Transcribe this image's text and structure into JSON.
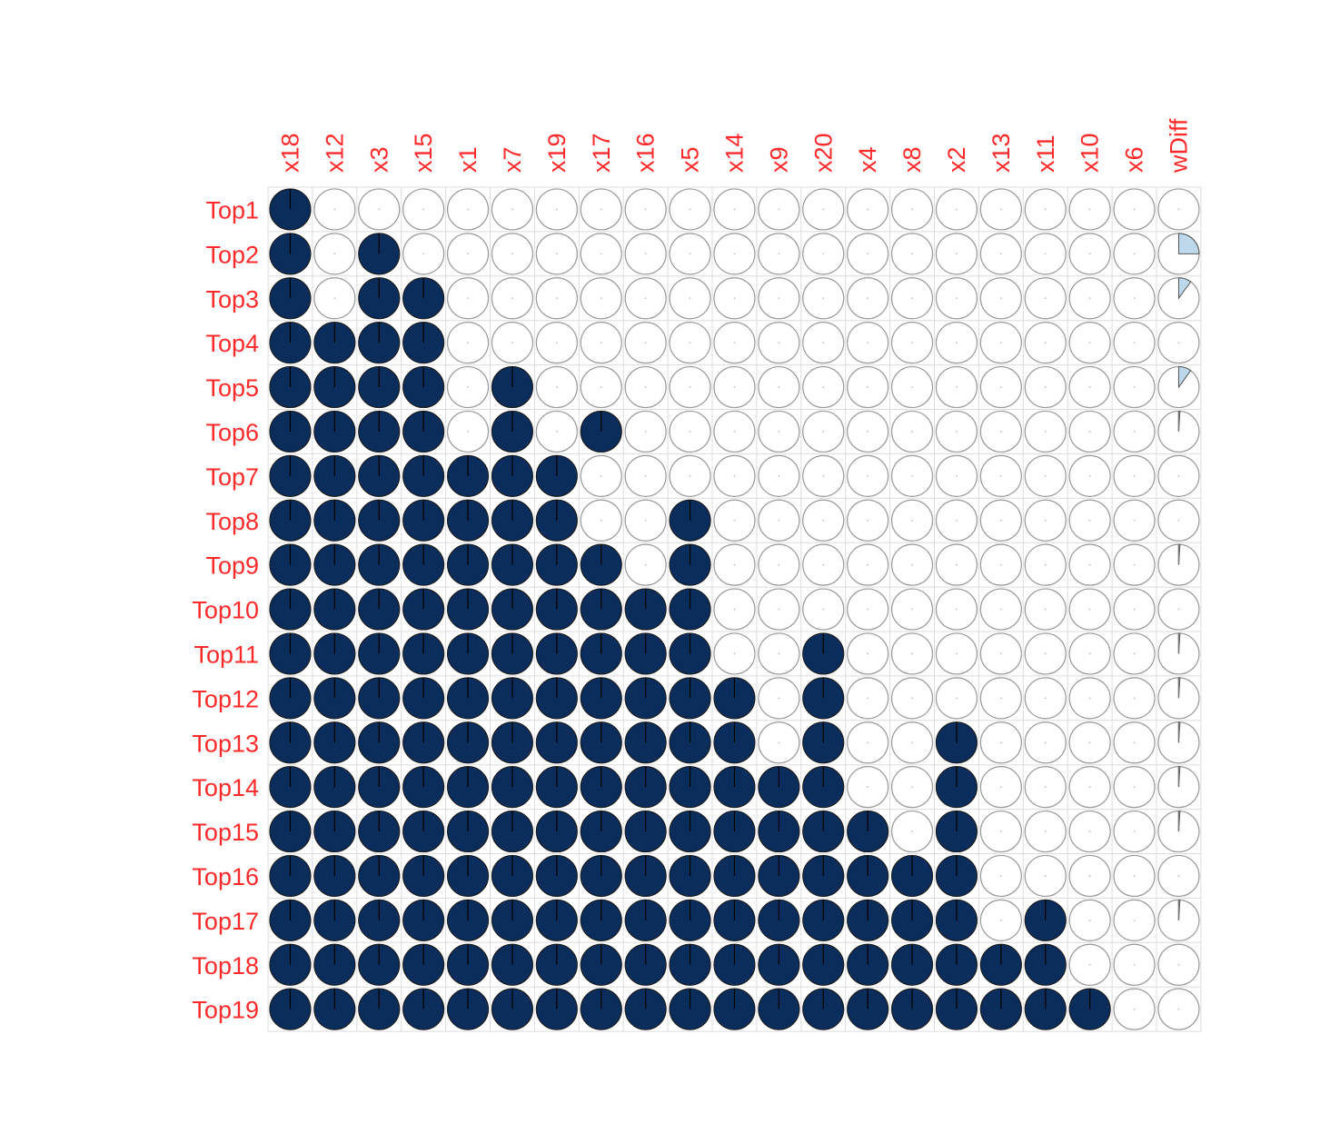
{
  "chart_data": {
    "type": "heatmap",
    "glyph": "pie",
    "columns": [
      "x18",
      "x12",
      "x3",
      "x15",
      "x1",
      "x7",
      "x19",
      "x17",
      "x16",
      "x5",
      "x14",
      "x9",
      "x20",
      "x4",
      "x8",
      "x2",
      "x13",
      "x11",
      "x10",
      "x6",
      "wDiff"
    ],
    "rows": [
      "Top1",
      "Top2",
      "Top3",
      "Top4",
      "Top5",
      "Top6",
      "Top7",
      "Top8",
      "Top9",
      "Top10",
      "Top11",
      "Top12",
      "Top13",
      "Top14",
      "Top15",
      "Top16",
      "Top17",
      "Top18",
      "Top19"
    ],
    "values": [
      [
        1,
        0,
        0,
        0,
        0,
        0,
        0,
        0,
        0,
        0,
        0,
        0,
        0,
        0,
        0,
        0,
        0,
        0,
        0,
        0,
        0
      ],
      [
        1,
        0,
        1,
        0,
        0,
        0,
        0,
        0,
        0,
        0,
        0,
        0,
        0,
        0,
        0,
        0,
        0,
        0,
        0,
        0,
        0.25
      ],
      [
        1,
        0,
        1,
        1,
        0,
        0,
        0,
        0,
        0,
        0,
        0,
        0,
        0,
        0,
        0,
        0,
        0,
        0,
        0,
        0,
        0.1
      ],
      [
        1,
        1,
        1,
        1,
        0,
        0,
        0,
        0,
        0,
        0,
        0,
        0,
        0,
        0,
        0,
        0,
        0,
        0,
        0,
        0,
        0
      ],
      [
        1,
        1,
        1,
        1,
        0,
        1,
        0,
        0,
        0,
        0,
        0,
        0,
        0,
        0,
        0,
        0,
        0,
        0,
        0,
        0,
        0.1
      ],
      [
        1,
        1,
        1,
        1,
        0,
        1,
        0,
        1,
        0,
        0,
        0,
        0,
        0,
        0,
        0,
        0,
        0,
        0,
        0,
        0,
        0.01
      ],
      [
        1,
        1,
        1,
        1,
        1,
        1,
        1,
        0,
        0,
        0,
        0,
        0,
        0,
        0,
        0,
        0,
        0,
        0,
        0,
        0,
        0
      ],
      [
        1,
        1,
        1,
        1,
        1,
        1,
        1,
        0,
        0,
        1,
        0,
        0,
        0,
        0,
        0,
        0,
        0,
        0,
        0,
        0,
        0
      ],
      [
        1,
        1,
        1,
        1,
        1,
        1,
        1,
        1,
        0,
        1,
        0,
        0,
        0,
        0,
        0,
        0,
        0,
        0,
        0,
        0,
        0.01
      ],
      [
        1,
        1,
        1,
        1,
        1,
        1,
        1,
        1,
        1,
        1,
        0,
        0,
        0,
        0,
        0,
        0,
        0,
        0,
        0,
        0,
        0
      ],
      [
        1,
        1,
        1,
        1,
        1,
        1,
        1,
        1,
        1,
        1,
        0,
        0,
        1,
        0,
        0,
        0,
        0,
        0,
        0,
        0,
        0.01
      ],
      [
        1,
        1,
        1,
        1,
        1,
        1,
        1,
        1,
        1,
        1,
        1,
        0,
        1,
        0,
        0,
        0,
        0,
        0,
        0,
        0,
        0.01
      ],
      [
        1,
        1,
        1,
        1,
        1,
        1,
        1,
        1,
        1,
        1,
        1,
        0,
        1,
        0,
        0,
        1,
        0,
        0,
        0,
        0,
        0.01
      ],
      [
        1,
        1,
        1,
        1,
        1,
        1,
        1,
        1,
        1,
        1,
        1,
        1,
        1,
        0,
        0,
        1,
        0,
        0,
        0,
        0,
        0.01
      ],
      [
        1,
        1,
        1,
        1,
        1,
        1,
        1,
        1,
        1,
        1,
        1,
        1,
        1,
        1,
        0,
        1,
        0,
        0,
        0,
        0,
        0.01
      ],
      [
        1,
        1,
        1,
        1,
        1,
        1,
        1,
        1,
        1,
        1,
        1,
        1,
        1,
        1,
        1,
        1,
        0,
        0,
        0,
        0,
        0
      ],
      [
        1,
        1,
        1,
        1,
        1,
        1,
        1,
        1,
        1,
        1,
        1,
        1,
        1,
        1,
        1,
        1,
        0,
        1,
        0,
        0,
        0.01
      ],
      [
        1,
        1,
        1,
        1,
        1,
        1,
        1,
        1,
        1,
        1,
        1,
        1,
        1,
        1,
        1,
        1,
        1,
        1,
        0,
        0,
        0
      ],
      [
        1,
        1,
        1,
        1,
        1,
        1,
        1,
        1,
        1,
        1,
        1,
        1,
        1,
        1,
        1,
        1,
        1,
        1,
        1,
        0,
        0
      ]
    ],
    "colors": {
      "full": "#0b2d5c",
      "partial": "#bcd8ea",
      "outline": "#9a9a9a",
      "grid": "#dcdcdc",
      "label": "#ff2a2a"
    },
    "grid": true
  }
}
